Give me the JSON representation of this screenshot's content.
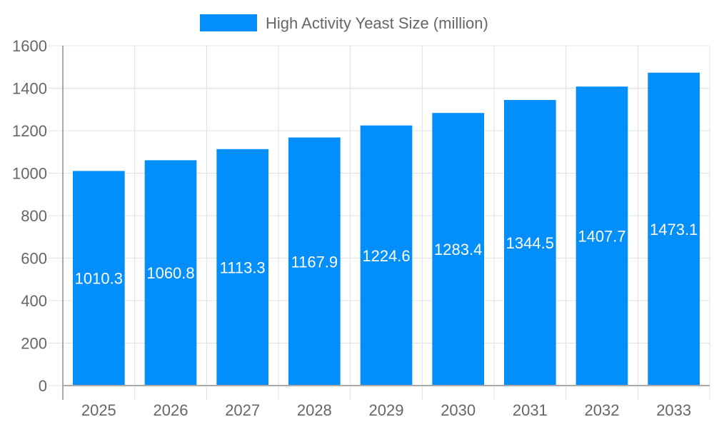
{
  "chart_data": {
    "type": "bar",
    "title": "",
    "xlabel": "",
    "ylabel": "",
    "categories": [
      "2025",
      "2026",
      "2027",
      "2028",
      "2029",
      "2030",
      "2031",
      "2032",
      "2033"
    ],
    "series": [
      {
        "name": "High Activity Yeast Size (million)",
        "values": [
          1010.3,
          1060.8,
          1113.3,
          1167.9,
          1224.6,
          1283.4,
          1344.5,
          1407.7,
          1473.1
        ],
        "color": "#038ffb"
      }
    ],
    "ylim": [
      0,
      1600
    ],
    "yticks": [
      0,
      200,
      400,
      600,
      800,
      1000,
      1200,
      1400,
      1600
    ],
    "grid": true,
    "legend": "top-center",
    "data_labels": "inside-middle"
  }
}
